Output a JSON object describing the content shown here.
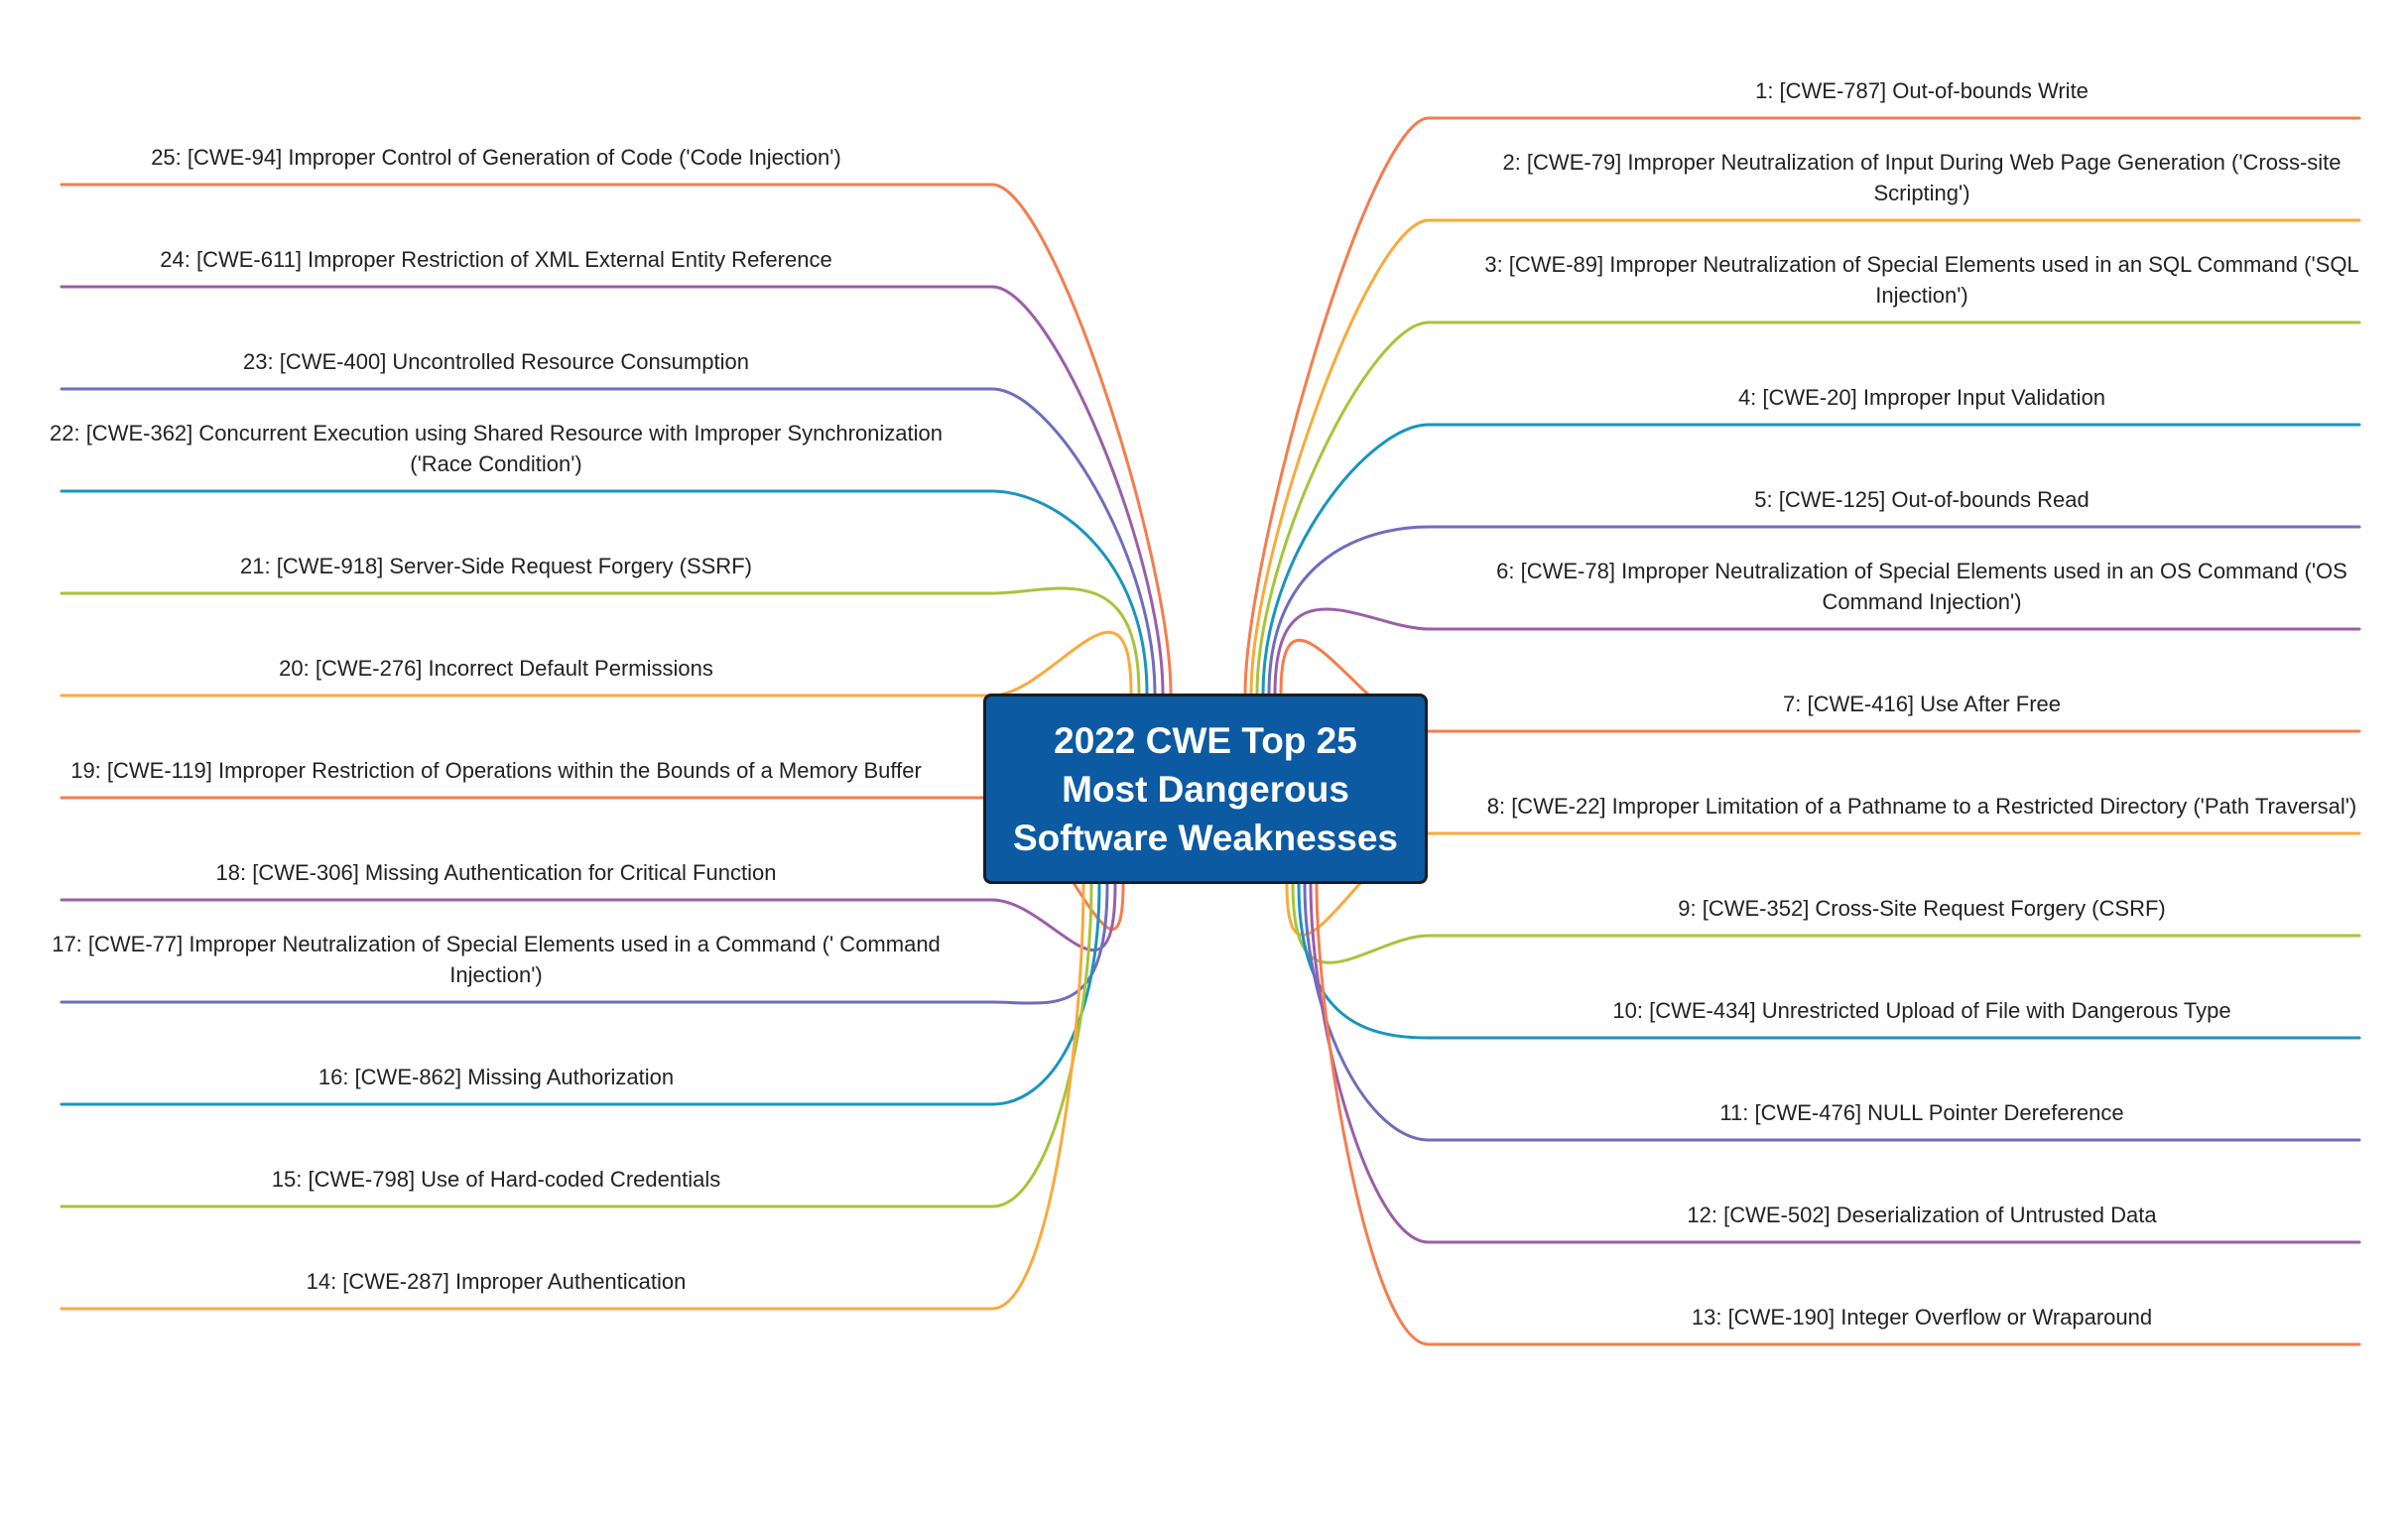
{
  "central_topic": {
    "title": "2022 CWE Top 25 Most Dangerous Software Weaknesses",
    "fill_color": "#0b5aa2",
    "text_color": "#ffffff"
  },
  "branches": [
    {
      "rank": 1,
      "label": "1: [CWE-787] Out-of-bounds Write",
      "side": "right",
      "color": "#f47d4f"
    },
    {
      "rank": 2,
      "label": "2: [CWE-79] Improper Neutralization of Input During Web Page Generation ('Cross-site Scripting')",
      "side": "right",
      "color": "#f9aa3c"
    },
    {
      "rank": 3,
      "label": "3: [CWE-89] Improper Neutralization of Special Elements used in an SQL Command ('SQL Injection')",
      "side": "right",
      "color": "#a7c43a"
    },
    {
      "rank": 4,
      "label": "4: [CWE-20] Improper Input Validation",
      "side": "right",
      "color": "#1995bd"
    },
    {
      "rank": 5,
      "label": "5: [CWE-125] Out-of-bounds Read",
      "side": "right",
      "color": "#6e6dbd"
    },
    {
      "rank": 6,
      "label": "6: [CWE-78] Improper Neutralization of Special Elements used in an OS Command ('OS Command Injection')",
      "side": "right",
      "color": "#9b5ea8"
    },
    {
      "rank": 7,
      "label": "7: [CWE-416] Use After Free",
      "side": "right",
      "color": "#f47d4f"
    },
    {
      "rank": 8,
      "label": "8: [CWE-22] Improper Limitation of a Pathname to a Restricted Directory ('Path Traversal')",
      "side": "right",
      "color": "#f9aa3c"
    },
    {
      "rank": 9,
      "label": "9: [CWE-352] Cross-Site Request Forgery (CSRF)",
      "side": "right",
      "color": "#a7c43a"
    },
    {
      "rank": 10,
      "label": "10: [CWE-434] Unrestricted Upload of File with Dangerous Type",
      "side": "right",
      "color": "#1995bd"
    },
    {
      "rank": 11,
      "label": "11: [CWE-476] NULL Pointer Dereference",
      "side": "right",
      "color": "#6e6dbd"
    },
    {
      "rank": 12,
      "label": "12: [CWE-502] Deserialization of Untrusted Data",
      "side": "right",
      "color": "#9b5ea8"
    },
    {
      "rank": 13,
      "label": "13: [CWE-190] Integer Overflow or Wraparound",
      "side": "right",
      "color": "#f47d4f"
    },
    {
      "rank": 14,
      "label": "14: [CWE-287] Improper Authentication",
      "side": "left",
      "color": "#f9aa3c"
    },
    {
      "rank": 15,
      "label": "15: [CWE-798] Use of Hard-coded Credentials",
      "side": "left",
      "color": "#a7c43a"
    },
    {
      "rank": 16,
      "label": "16: [CWE-862] Missing Authorization",
      "side": "left",
      "color": "#1995bd"
    },
    {
      "rank": 17,
      "label": "17: [CWE-77] Improper Neutralization of Special Elements used in a Command (' Command Injection')",
      "side": "left",
      "color": "#6e6dbd"
    },
    {
      "rank": 18,
      "label": "18: [CWE-306] Missing Authentication for Critical Function",
      "side": "left",
      "color": "#9b5ea8"
    },
    {
      "rank": 19,
      "label": "19: [CWE-119] Improper Restriction of Operations within the Bounds of a Memory Buffer",
      "side": "left",
      "color": "#f47d4f"
    },
    {
      "rank": 20,
      "label": "20: [CWE-276] Incorrect Default Permissions",
      "side": "left",
      "color": "#f9aa3c"
    },
    {
      "rank": 21,
      "label": "21: [CWE-918] Server-Side Request Forgery (SSRF)",
      "side": "left",
      "color": "#a7c43a"
    },
    {
      "rank": 22,
      "label": "22: [CWE-362] Concurrent Execution using Shared Resource with Improper Synchronization ('Race Condition')",
      "side": "left",
      "color": "#1995bd"
    },
    {
      "rank": 23,
      "label": "23: [CWE-400] Uncontrolled Resource Consumption",
      "side": "left",
      "color": "#6e6dbd"
    },
    {
      "rank": 24,
      "label": "24: [CWE-611] Improper Restriction of XML External Entity Reference",
      "side": "left",
      "color": "#9b5ea8"
    },
    {
      "rank": 25,
      "label": "25: [CWE-94] Improper Control of Generation of Code ('Code Injection')",
      "side": "left",
      "color": "#f47d4f"
    }
  ]
}
